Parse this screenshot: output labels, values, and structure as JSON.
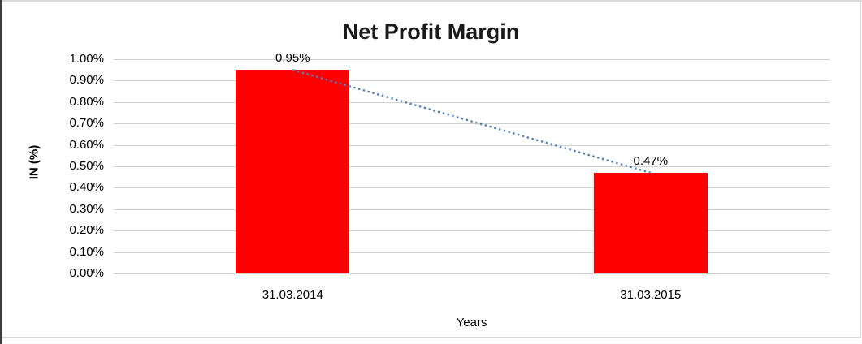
{
  "chart_data": {
    "type": "bar",
    "title": "Net Profit Margin",
    "xlabel": "Years",
    "ylabel": "IN (%)",
    "categories": [
      "31.03.2014",
      "31.03.2015"
    ],
    "values": [
      0.95,
      0.47
    ],
    "data_labels": [
      "0.95%",
      "0.47%"
    ],
    "ylim": [
      0,
      1.0
    ],
    "ytick_step": 0.1,
    "ytick_labels": [
      "0.00%",
      "0.10%",
      "0.20%",
      "0.30%",
      "0.40%",
      "0.50%",
      "0.60%",
      "0.70%",
      "0.80%",
      "0.90%",
      "1.00%"
    ],
    "grid": true,
    "legend": false,
    "bar_color": "#ff0000",
    "gridline_color": "#d0d0d0",
    "trendline": {
      "type": "linear",
      "style": "dotted",
      "color": "#4f81bd",
      "from": [
        0,
        0.95
      ],
      "to": [
        1,
        0.47
      ]
    }
  }
}
